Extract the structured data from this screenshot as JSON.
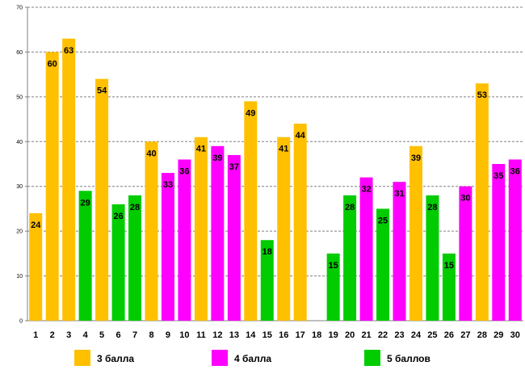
{
  "chart_data": {
    "type": "bar",
    "title": "",
    "xlabel": "",
    "ylabel": "",
    "ylim": [
      0,
      70
    ],
    "yticks": [
      0,
      10,
      20,
      30,
      40,
      50,
      60,
      70
    ],
    "grid": true,
    "categories": [
      "1",
      "2",
      "3",
      "4",
      "5",
      "6",
      "7",
      "8",
      "9",
      "10",
      "11",
      "12",
      "13",
      "14",
      "15",
      "16",
      "17",
      "18",
      "19",
      "20",
      "21",
      "22",
      "23",
      "24",
      "25",
      "26",
      "27",
      "28",
      "29",
      "30"
    ],
    "values": [
      24,
      60,
      63,
      29,
      54,
      26,
      28,
      40,
      33,
      36,
      41,
      39,
      37,
      49,
      18,
      41,
      44,
      null,
      15,
      28,
      32,
      25,
      31,
      39,
      28,
      15,
      30,
      53,
      35,
      36
    ],
    "groups": [
      "g3",
      "g3",
      "g3",
      "g5",
      "g3",
      "g5",
      "g5",
      "g3",
      "g4",
      "g4",
      "g3",
      "g4",
      "g4",
      "g3",
      "g5",
      "g3",
      "g3",
      null,
      "g5",
      "g5",
      "g4",
      "g5",
      "g4",
      "g3",
      "g5",
      "g5",
      "g4",
      "g3",
      "g4",
      "g4"
    ],
    "legend": [
      {
        "key": "g3",
        "label": "3 балла",
        "color": "#FFC000"
      },
      {
        "key": "g4",
        "label": "4 балла",
        "color": "#FF00FF"
      },
      {
        "key": "g5",
        "label": "5 баллов",
        "color": "#00CC00"
      }
    ],
    "legend_position": "bottom"
  }
}
